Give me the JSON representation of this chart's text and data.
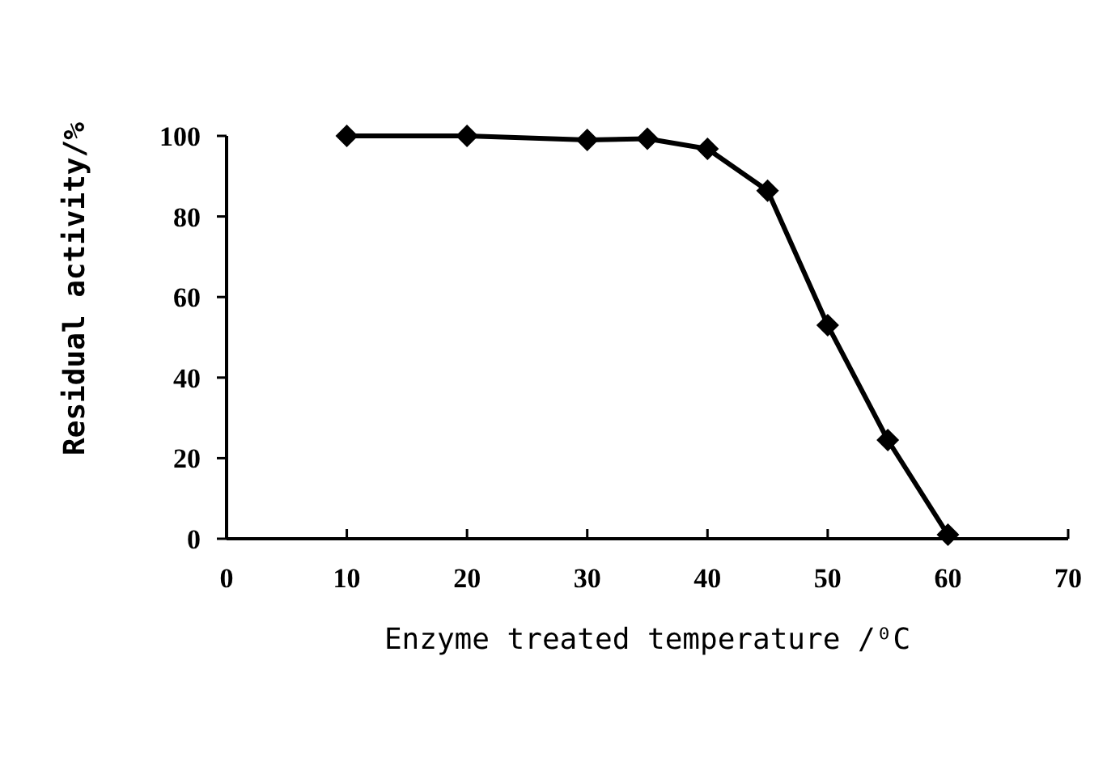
{
  "chart_data": {
    "type": "line",
    "xlabel": "Enzyme treated temperature /⁰C",
    "ylabel": "Residual activity/%",
    "x": [
      10,
      20,
      30,
      35,
      40,
      45,
      50,
      55,
      60
    ],
    "series": [
      {
        "color": "#000000",
        "values": [
          100,
          100,
          99,
          99.3,
          96.8,
          86.4,
          53,
          24.5,
          1
        ]
      }
    ],
    "xlim": [
      0,
      70
    ],
    "xticks": [
      0,
      10,
      20,
      30,
      40,
      50,
      60,
      70
    ],
    "ylim": [
      0,
      100
    ],
    "yticks": [
      0,
      20,
      40,
      60,
      80,
      100
    ],
    "grid": false,
    "marker": "diamond",
    "line_style": "solid"
  }
}
